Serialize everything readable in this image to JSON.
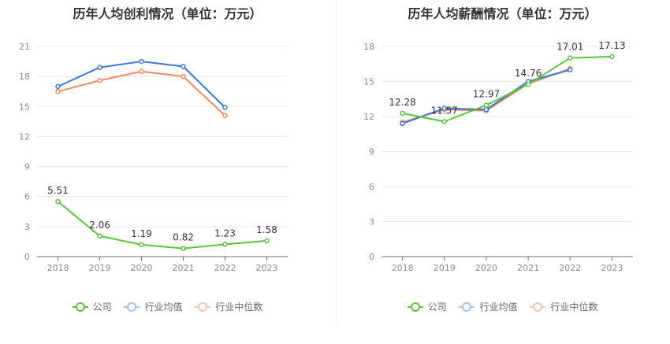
{
  "chart_data": [
    {
      "type": "line",
      "title": "历年人均创利情况（单位：万元）",
      "categories": [
        "2018",
        "2019",
        "2020",
        "2021",
        "2022",
        "2023"
      ],
      "yticks": [
        0,
        3,
        6,
        9,
        12,
        15,
        18,
        21
      ],
      "ylim": [
        0,
        21
      ],
      "grid": true,
      "legend": "bottom",
      "series": [
        {
          "name": "公司",
          "values": [
            5.51,
            2.06,
            1.19,
            0.82,
            1.23,
            1.58
          ],
          "labels": [
            "5.51",
            "2.06",
            "1.19",
            "0.82",
            "1.23",
            "1.58"
          ],
          "color": "#5ac53c"
        },
        {
          "name": "行业均值",
          "values": [
            17.0,
            18.9,
            19.5,
            19.0,
            14.9,
            null
          ],
          "labels": null,
          "color": "#3a77d8"
        },
        {
          "name": "行业中位数",
          "values": [
            16.5,
            17.6,
            18.5,
            18.0,
            14.1,
            null
          ],
          "labels": null,
          "color": "#f08a5d"
        }
      ]
    },
    {
      "type": "line",
      "title": "历年人均薪酬情况（单位：万元）",
      "categories": [
        "2018",
        "2019",
        "2020",
        "2021",
        "2022",
        "2023"
      ],
      "yticks": [
        0,
        3,
        6,
        9,
        12,
        15,
        18
      ],
      "ylim": [
        0,
        18
      ],
      "grid": true,
      "legend": "bottom",
      "series": [
        {
          "name": "公司",
          "values": [
            12.28,
            11.57,
            12.97,
            14.76,
            17.01,
            17.13
          ],
          "labels": [
            "12.28",
            "11.57",
            "12.97",
            "14.76",
            "17.01",
            "17.13"
          ],
          "color": "#5ac53c"
        },
        {
          "name": "行业均值",
          "values": [
            11.4,
            12.7,
            12.6,
            15.0,
            16.0,
            null
          ],
          "labels": null,
          "color": "#3a77d8"
        },
        {
          "name": "行业中位数",
          "values": [
            11.5,
            12.6,
            12.5,
            14.8,
            16.1,
            null
          ],
          "labels": null,
          "color": "#f08a5d"
        }
      ]
    }
  ],
  "legend_styles": {
    "公司": {
      "line": "#5ac53c",
      "dot": "#5ac53c"
    },
    "行业均值": {
      "line": "#a6c3ee",
      "dot": "#a6c3ee"
    },
    "行业中位数": {
      "line": "#f6c3ad",
      "dot": "#f6c3ad"
    }
  }
}
